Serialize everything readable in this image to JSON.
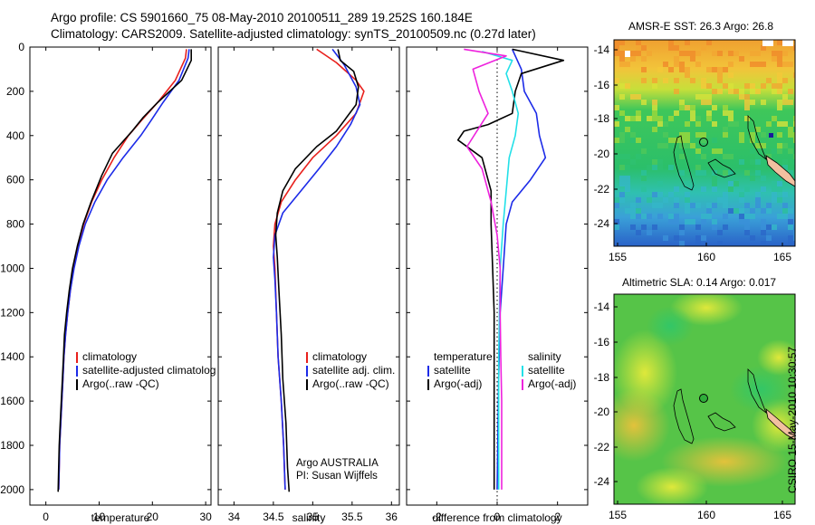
{
  "header": {
    "line1": "Argo profile: CS 5901660_75 08-May-2010 20100511_289 19.252S 160.184E",
    "line2": "Climatology: CARS2009. Satellite-adjusted climatology: synTS_20100509.nc (0.27d later)"
  },
  "maps": {
    "sst_title": "AMSR-E SST: 26.3 Argo: 26.8",
    "sla_title": "Altimetric SLA: 0.14 Argo: 0.017",
    "lat_ticks": [
      "-14",
      "-16",
      "-18",
      "-20",
      "-22",
      "-24"
    ],
    "lon_ticks": [
      "155",
      "160",
      "165"
    ]
  },
  "credit": "CSIRO 15-May-2010 10:30:57",
  "colors": {
    "climatology": "#e8201c",
    "satellite": "#1c2be8",
    "argo": "#000000",
    "satellite_diff_salinity": "#22e0e8",
    "argo_diff_salinity": "#ee22dd",
    "land": "#f2c0a0"
  },
  "chart_data": [
    {
      "type": "line",
      "xlabel": "temperature",
      "ylabel": "",
      "xlim": [
        -3,
        31
      ],
      "ylim": [
        2070,
        0
      ],
      "x_ticks": [
        0,
        10,
        20,
        30
      ],
      "y_ticks": [
        0,
        200,
        400,
        600,
        800,
        1000,
        1200,
        1400,
        1600,
        1800,
        2000
      ],
      "legend_position": "lower-right",
      "legend": [
        "climatology",
        "satellite-adjusted climatolog",
        "Argo(..raw -QC)"
      ],
      "series": [
        {
          "name": "climatology",
          "color": "#e8201c",
          "points": [
            [
              26.4,
              10
            ],
            [
              26.2,
              50
            ],
            [
              24.3,
              150
            ],
            [
              21,
              250
            ],
            [
              18,
              330
            ],
            [
              15.5,
              400
            ],
            [
              12.8,
              500
            ],
            [
              10.5,
              600
            ],
            [
              8.6,
              700
            ],
            [
              7.1,
              800
            ],
            [
              6,
              900
            ],
            [
              5.2,
              1000
            ],
            [
              4.6,
              1100
            ],
            [
              4.1,
              1200
            ],
            [
              3.7,
              1300
            ],
            [
              3.4,
              1400
            ],
            [
              3.2,
              1500
            ],
            [
              3,
              1600
            ],
            [
              2.8,
              1700
            ],
            [
              2.6,
              1800
            ],
            [
              2.5,
              1900
            ],
            [
              2.4,
              2000
            ]
          ]
        },
        {
          "name": "satellite-adjusted climatolog",
          "color": "#1c2be8",
          "points": [
            [
              26.9,
              10
            ],
            [
              26.7,
              50
            ],
            [
              25,
              150
            ],
            [
              22,
              250
            ],
            [
              19.8,
              330
            ],
            [
              17.8,
              400
            ],
            [
              14.5,
              500
            ],
            [
              11.5,
              600
            ],
            [
              9.2,
              700
            ],
            [
              7.4,
              800
            ],
            [
              6.2,
              900
            ],
            [
              5.3,
              1000
            ],
            [
              4.6,
              1100
            ],
            [
              4.1,
              1200
            ],
            [
              3.7,
              1300
            ],
            [
              3.4,
              1400
            ],
            [
              3.2,
              1500
            ],
            [
              3,
              1600
            ],
            [
              2.8,
              1700
            ],
            [
              2.6,
              1800
            ],
            [
              2.5,
              1900
            ],
            [
              2.4,
              2000
            ]
          ]
        },
        {
          "name": "Argo(..raw -QC)",
          "color": "#000000",
          "points": [
            [
              27.3,
              10
            ],
            [
              27.3,
              60
            ],
            [
              25.5,
              150
            ],
            [
              21,
              250
            ],
            [
              18.2,
              320
            ],
            [
              16.2,
              380
            ],
            [
              12.5,
              480
            ],
            [
              10.5,
              580
            ],
            [
              8.5,
              700
            ],
            [
              7,
              800
            ],
            [
              5.9,
              900
            ],
            [
              5,
              1000
            ],
            [
              4.4,
              1100
            ],
            [
              3.9,
              1200
            ],
            [
              3.5,
              1300
            ],
            [
              3.3,
              1400
            ],
            [
              3.1,
              1500
            ],
            [
              2.9,
              1600
            ],
            [
              2.7,
              1700
            ],
            [
              2.5,
              1800
            ],
            [
              2.4,
              1900
            ],
            [
              2.3,
              2010
            ]
          ]
        }
      ]
    },
    {
      "type": "line",
      "xlabel": "salinity",
      "ylabel": "",
      "xlim": [
        33.8,
        36.1
      ],
      "ylim": [
        2070,
        0
      ],
      "x_ticks": [
        34,
        34.5,
        35,
        35.5,
        36
      ],
      "x_tick_labels": [
        "34",
        "34.5",
        "35",
        "35.5",
        "36"
      ],
      "legend_position": "lower-right",
      "legend": [
        "climatology",
        "satellite adj. clim.",
        "Argo(..raw -QC)"
      ],
      "annotation": [
        "Argo AUSTRALIA",
        "PI: Susan Wijffels"
      ],
      "series": [
        {
          "name": "climatology",
          "color": "#e8201c",
          "points": [
            [
              35.05,
              10
            ],
            [
              35.3,
              70
            ],
            [
              35.55,
              150
            ],
            [
              35.65,
              200
            ],
            [
              35.55,
              300
            ],
            [
              35.3,
              400
            ],
            [
              35,
              500
            ],
            [
              34.78,
              600
            ],
            [
              34.6,
              700
            ],
            [
              34.52,
              800
            ],
            [
              34.5,
              900
            ],
            [
              34.52,
              1000
            ],
            [
              34.54,
              1200
            ],
            [
              34.56,
              1400
            ],
            [
              34.6,
              1600
            ],
            [
              34.63,
              1800
            ],
            [
              34.65,
              2000
            ]
          ]
        },
        {
          "name": "satellite adj. clim.",
          "color": "#1c2be8",
          "points": [
            [
              35.25,
              10
            ],
            [
              35.4,
              80
            ],
            [
              35.55,
              180
            ],
            [
              35.6,
              260
            ],
            [
              35.48,
              350
            ],
            [
              35.3,
              450
            ],
            [
              35.08,
              550
            ],
            [
              34.85,
              650
            ],
            [
              34.62,
              750
            ],
            [
              34.52,
              850
            ],
            [
              34.5,
              950
            ],
            [
              34.52,
              1050
            ],
            [
              34.54,
              1200
            ],
            [
              34.56,
              1400
            ],
            [
              34.6,
              1600
            ],
            [
              34.63,
              1800
            ],
            [
              34.65,
              2000
            ]
          ]
        },
        {
          "name": "Argo(..raw -QC)",
          "color": "#000000",
          "points": [
            [
              35.32,
              10
            ],
            [
              35.35,
              60
            ],
            [
              35.52,
              110
            ],
            [
              35.58,
              180
            ],
            [
              35.55,
              260
            ],
            [
              35.3,
              380
            ],
            [
              35.05,
              450
            ],
            [
              34.78,
              550
            ],
            [
              34.62,
              650
            ],
            [
              34.55,
              750
            ],
            [
              34.53,
              850
            ],
            [
              34.55,
              950
            ],
            [
              34.57,
              1100
            ],
            [
              34.6,
              1300
            ],
            [
              34.62,
              1500
            ],
            [
              34.66,
              1700
            ],
            [
              34.68,
              1900
            ],
            [
              34.7,
              2010
            ]
          ]
        }
      ]
    },
    {
      "type": "line",
      "xlabel": "difference from climatology",
      "ylabel": "",
      "xlim": [
        -3,
        3
      ],
      "ylim": [
        2070,
        0
      ],
      "x_ticks": [
        -2,
        0,
        2
      ],
      "legend_position": "lower-right",
      "legend_groups": [
        "temperature",
        "salinity"
      ],
      "legend": [
        "satellite",
        "Argo(-adj)",
        "satellite",
        "Argo(-adj)"
      ],
      "series": [
        {
          "name": "temperature satellite",
          "color": "#1c2be8",
          "points": [
            [
              0.5,
              10
            ],
            [
              0.8,
              100
            ],
            [
              0.9,
              200
            ],
            [
              1.3,
              300
            ],
            [
              1.4,
              400
            ],
            [
              1.6,
              500
            ],
            [
              1.1,
              600
            ],
            [
              0.5,
              700
            ],
            [
              0.3,
              800
            ],
            [
              0.2,
              1000
            ],
            [
              0.1,
              1200
            ],
            [
              0.05,
              1500
            ],
            [
              0,
              2000
            ]
          ]
        },
        {
          "name": "temperature Argo(-adj)",
          "color": "#000000",
          "points": [
            [
              0.5,
              10
            ],
            [
              2.2,
              60
            ],
            [
              0.8,
              120
            ],
            [
              0.6,
              200
            ],
            [
              0.5,
              300
            ],
            [
              -0.3,
              350
            ],
            [
              -1.1,
              380
            ],
            [
              -1.3,
              420
            ],
            [
              -0.5,
              500
            ],
            [
              -0.2,
              650
            ],
            [
              -0.2,
              800
            ],
            [
              -0.15,
              1000
            ],
            [
              -0.1,
              1200
            ],
            [
              -0.1,
              1400
            ],
            [
              -0.1,
              1600
            ],
            [
              -0.1,
              1800
            ],
            [
              -0.1,
              2000
            ]
          ]
        },
        {
          "name": "salinity satellite",
          "color": "#22e0e8",
          "points": [
            [
              -0.5,
              20
            ],
            [
              0.5,
              60
            ],
            [
              0.3,
              120
            ],
            [
              0.5,
              200
            ],
            [
              0.7,
              300
            ],
            [
              0.6,
              400
            ],
            [
              0.4,
              500
            ],
            [
              0.3,
              650
            ],
            [
              0.2,
              800
            ],
            [
              0.1,
              1000
            ],
            [
              0.05,
              1400
            ],
            [
              0.05,
              2000
            ]
          ]
        },
        {
          "name": "salinity Argo(-adj)",
          "color": "#ee22dd",
          "points": [
            [
              -1.1,
              10
            ],
            [
              0.3,
              40
            ],
            [
              -0.8,
              100
            ],
            [
              -0.6,
              200
            ],
            [
              -0.3,
              300
            ],
            [
              -1.0,
              450
            ],
            [
              -0.5,
              550
            ],
            [
              -0.2,
              700
            ],
            [
              0,
              850
            ],
            [
              0.1,
              1000
            ],
            [
              0.1,
              1200
            ],
            [
              0.12,
              1400
            ],
            [
              0.15,
              1600
            ],
            [
              0.15,
              1800
            ],
            [
              0.15,
              2000
            ]
          ]
        }
      ]
    }
  ]
}
